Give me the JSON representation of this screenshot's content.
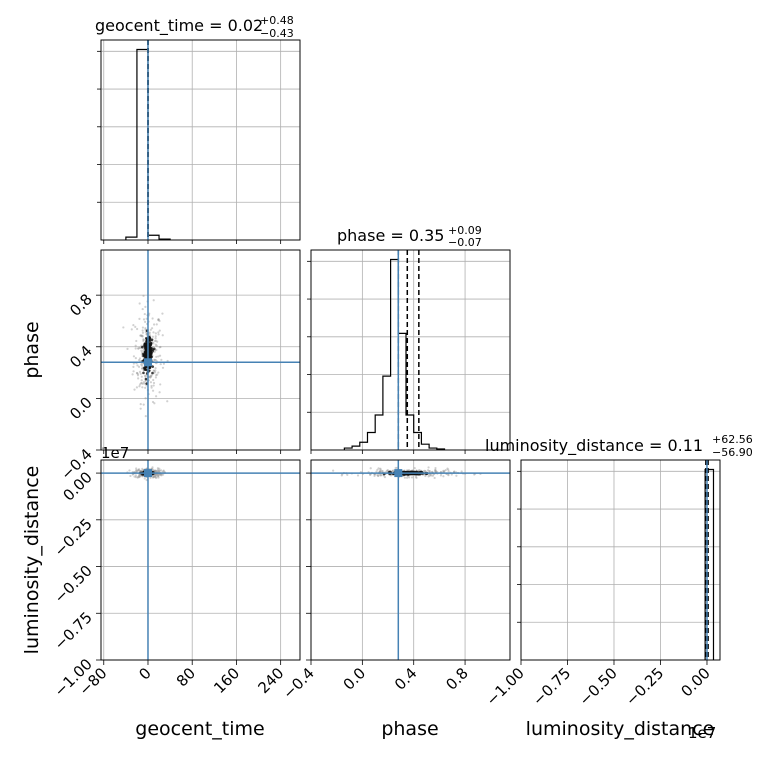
{
  "chart_data": {
    "type": "corner",
    "parameters": [
      "geocent_time",
      "phase",
      "luminosity_distance"
    ],
    "truths": {
      "geocent_time": 0.0,
      "phase": 0.28,
      "luminosity_distance": 0.0
    },
    "truth_color": "#4682b4",
    "grid": true,
    "titles": {
      "geocent_time": {
        "label": "geocent_time",
        "median": "0.02",
        "plus": "+0.48",
        "minus": "−0.43"
      },
      "phase": {
        "label": "phase",
        "median": "0.35",
        "plus": "+0.09",
        "minus": "−0.07"
      },
      "luminosity_distance": {
        "label": "luminosity_distance",
        "median": "0.11",
        "plus": "+62.56",
        "minus": "−56.90"
      }
    },
    "axis_labels": {
      "x": [
        "geocent_time",
        "phase",
        "luminosity_distance"
      ],
      "y": [
        "phase",
        "luminosity_distance"
      ]
    },
    "ticks": {
      "geocent_time": {
        "values": [
          -80,
          0,
          80,
          160,
          240
        ],
        "labels": [
          "−80",
          "0",
          "80",
          "160",
          "240"
        ]
      },
      "phase": {
        "values": [
          -0.4,
          0.0,
          0.4,
          0.8
        ],
        "labels": [
          "−0.4",
          "0.0",
          "0.4",
          "0.8"
        ]
      },
      "luminosity_distance": {
        "values": [
          -1.0,
          -0.75,
          -0.5,
          -0.25,
          0.0
        ],
        "labels": [
          "−1.00",
          "−0.75",
          "−0.50",
          "−0.25",
          "0.00"
        ]
      }
    },
    "ranges": {
      "geocent_time": [
        -85,
        275
      ],
      "phase": [
        -0.4,
        1.15
      ],
      "luminosity_distance": [
        -1.0,
        0.07
      ]
    },
    "offset_text": "1e7",
    "histograms": {
      "geocent_time": {
        "edges": [
          -40,
          -20,
          0,
          20,
          40
        ],
        "counts": [
          1.5,
          100,
          2.5,
          0.5
        ],
        "quantile_lines": [
          -0.41,
          0.02,
          0.5
        ],
        "truth": 0.0
      },
      "phase": {
        "edges": [
          -0.14,
          -0.08,
          -0.02,
          0.04,
          0.1,
          0.16,
          0.22,
          0.28,
          0.34,
          0.4,
          0.46,
          0.52,
          0.58,
          0.64
        ],
        "counts": [
          1,
          2,
          4,
          9,
          18,
          38,
          98,
          60,
          18,
          9,
          3,
          1,
          0.5
        ],
        "quantile_lines": [
          0.28,
          0.35,
          0.44
        ],
        "truth": 0.28
      },
      "luminosity_distance": {
        "edges": [
          -0.01,
          0.0,
          0.035
        ],
        "counts": [
          100,
          100
        ],
        "quantile_lines": [
          -0.006,
          0.0,
          0.006
        ],
        "truth": 0.0
      }
    },
    "scatter": {
      "phase_vs_geocent_time": {
        "x_center": 0.0,
        "y_center": 0.34,
        "x_spread": 4,
        "y_spread": 0.07,
        "outlier_x_range": [
          -60,
          210
        ],
        "outlier_y_range": [
          -0.3,
          0.72
        ]
      },
      "luminosity_distance_vs_geocent_time": {
        "x_center": 0.0,
        "y_center": 0.0,
        "x_spread": 4,
        "y_spread": 0.005
      },
      "luminosity_distance_vs_phase": {
        "x_center": 0.35,
        "y_center": 0.0,
        "x_spread": 0.06,
        "y_spread": 0.004
      }
    }
  }
}
